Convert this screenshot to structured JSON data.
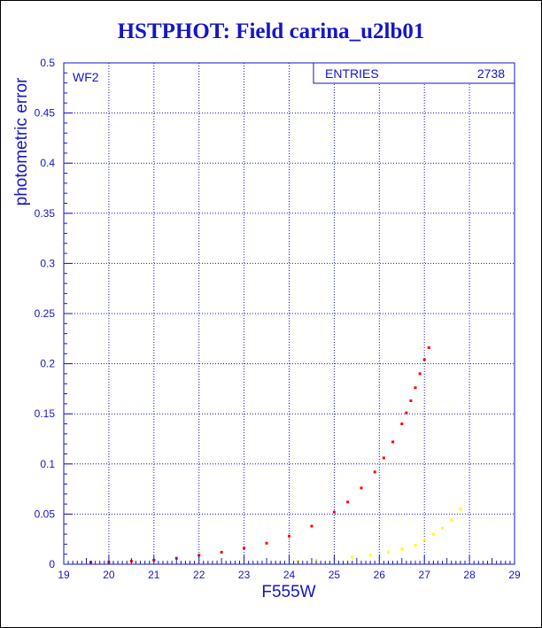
{
  "page": {
    "title": "HSTPHOT: Field carina_u2lb01"
  },
  "colors": {
    "axis": "#1515c8",
    "grid": "#1515c8",
    "main_sequence": "#ff0000",
    "secondary_sequence": "#ffff00"
  },
  "chart_data": {
    "type": "scatter",
    "title": "HSTPHOT: Field carina_u2lb01",
    "xlabel": "F555W",
    "ylabel": "photometric error",
    "xlim": [
      19,
      29
    ],
    "ylim": [
      0,
      0.5
    ],
    "x_ticks": [
      "19",
      "20",
      "21",
      "22",
      "23",
      "24",
      "25",
      "26",
      "27",
      "28",
      "29"
    ],
    "y_ticks": [
      "0",
      "0.05",
      "0.1",
      "0.15",
      "0.2",
      "0.25",
      "0.3",
      "0.35",
      "0.4",
      "0.45",
      "0.5"
    ],
    "grid": true,
    "panel_label": "WF2",
    "stats_box": {
      "label": "ENTRIES",
      "value": "2738"
    },
    "series": [
      {
        "color": "red",
        "x": [
          19.6,
          20.0,
          20.5,
          21.0,
          21.5,
          22.0,
          22.5,
          23.0,
          23.5,
          24.0,
          24.5,
          25.0,
          25.3,
          25.6,
          25.9,
          26.1,
          26.3,
          26.5,
          26.6,
          26.7,
          26.8,
          26.9,
          27.0,
          27.1
        ],
        "y": [
          0.002,
          0.002,
          0.003,
          0.004,
          0.006,
          0.009,
          0.012,
          0.016,
          0.021,
          0.028,
          0.038,
          0.052,
          0.062,
          0.076,
          0.092,
          0.106,
          0.122,
          0.14,
          0.151,
          0.163,
          0.176,
          0.19,
          0.204,
          0.216
        ]
      },
      {
        "color": "yellow",
        "x": [
          24.2,
          24.6,
          25.0,
          25.4,
          25.8,
          26.2,
          26.5,
          26.8,
          27.0,
          27.2,
          27.4,
          27.6,
          27.8
        ],
        "y": [
          0.003,
          0.004,
          0.005,
          0.007,
          0.009,
          0.012,
          0.015,
          0.019,
          0.024,
          0.03,
          0.036,
          0.044,
          0.055
        ]
      }
    ]
  }
}
